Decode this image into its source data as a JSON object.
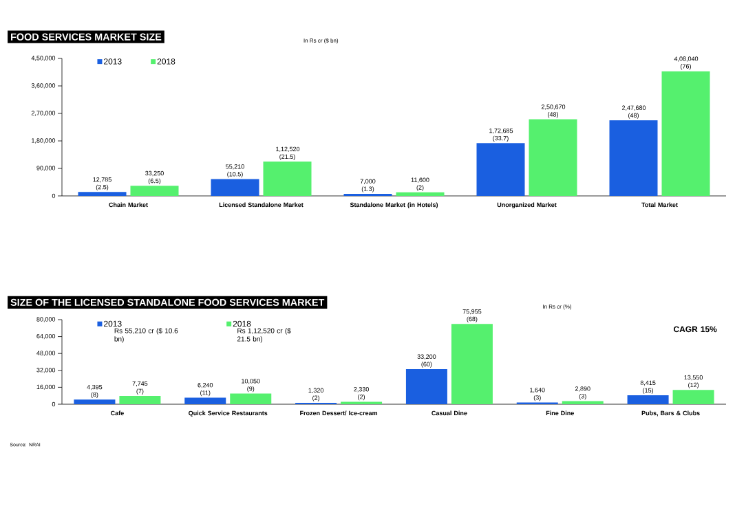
{
  "chart_data": [
    {
      "type": "bar",
      "title": "FOOD SERVICES MARKET SIZE",
      "subtitle": "In Rs cr ($ bn)",
      "categories": [
        "Chain Market",
        "Licensed Standalone Market",
        "Standalone Market (in Hotels)",
        "Unorganized Market",
        "Total Market"
      ],
      "series": [
        {
          "name": "2013",
          "color": "#1a5fe0",
          "values": [
            12785,
            55210,
            7000,
            172685,
            247680
          ],
          "value_labels": [
            "12,785 (2.5)",
            "55,210 (10.5)",
            "7,000 (1.3)",
            "1,72,685 (33.7)",
            "2,47,680 (48)"
          ]
        },
        {
          "name": "2018",
          "color": "#55f06e",
          "values": [
            33250,
            112520,
            11600,
            250670,
            408040
          ],
          "value_labels": [
            "33,250 (6.5)",
            "1,12,520 (21.5)",
            "11,600 (2)",
            "2,50,670 (48)",
            "4,08,040 (76)"
          ]
        }
      ],
      "ylim": [
        0,
        450000
      ],
      "yticks": [
        0,
        {
          "value": 90000,
          "label": "90,000"
        },
        {
          "value": 180000,
          "label": "1,80,000"
        },
        {
          "value": 270000,
          "label": "2,70,000"
        },
        {
          "value": 360000,
          "label": "3,60,000"
        },
        {
          "value": 450000,
          "label": "4,50,000"
        }
      ],
      "grid": false,
      "legend": "top left"
    },
    {
      "type": "bar",
      "title": "SIZE OF THE LICENSED STANDALONE FOOD SERVICES MARKET",
      "subtitle": "In Rs cr (%)",
      "categories": [
        "Cafe",
        "Quick Service Restaurants",
        "Frozen Dessert/ Ice-cream",
        "Casual Dine",
        "Fine Dine",
        "Pubs, Bars & Clubs"
      ],
      "series": [
        {
          "name": "2013",
          "color": "#1a5fe0",
          "values": [
            4395,
            6240,
            1320,
            33200,
            1640,
            8415
          ],
          "value_labels": [
            "4,395 (8)",
            "6,240 (11)",
            "1,320 (2)",
            "33,200 (60)",
            "1,640 (3)",
            "8,415 (15)"
          ]
        },
        {
          "name": "2018",
          "color": "#55f06e",
          "values": [
            7745,
            10050,
            2330,
            75955,
            2890,
            13550
          ],
          "value_labels": [
            "7,745 (7)",
            "10,050 (9)",
            "2,330 (2)",
            "75,955 (68)",
            "2,890 (3)",
            "13,550 (12)"
          ]
        }
      ],
      "ylim": [
        0,
        80000
      ],
      "yticks": [
        0,
        {
          "value": 16000,
          "label": "16,000"
        },
        {
          "value": 32000,
          "label": "32,000"
        },
        {
          "value": 48000,
          "label": "48,000"
        },
        {
          "value": 64000,
          "label": "64,000"
        },
        {
          "value": 80000,
          "label": "80,000"
        }
      ],
      "grid": false,
      "legend": "top left",
      "annotations": [
        "Rs 55,210 cr ($ 10.6 bn)",
        "Rs 1,12,520 cr ($ 21.5 bn)",
        "CAGR 15%",
        "Source: NRAI"
      ]
    }
  ]
}
